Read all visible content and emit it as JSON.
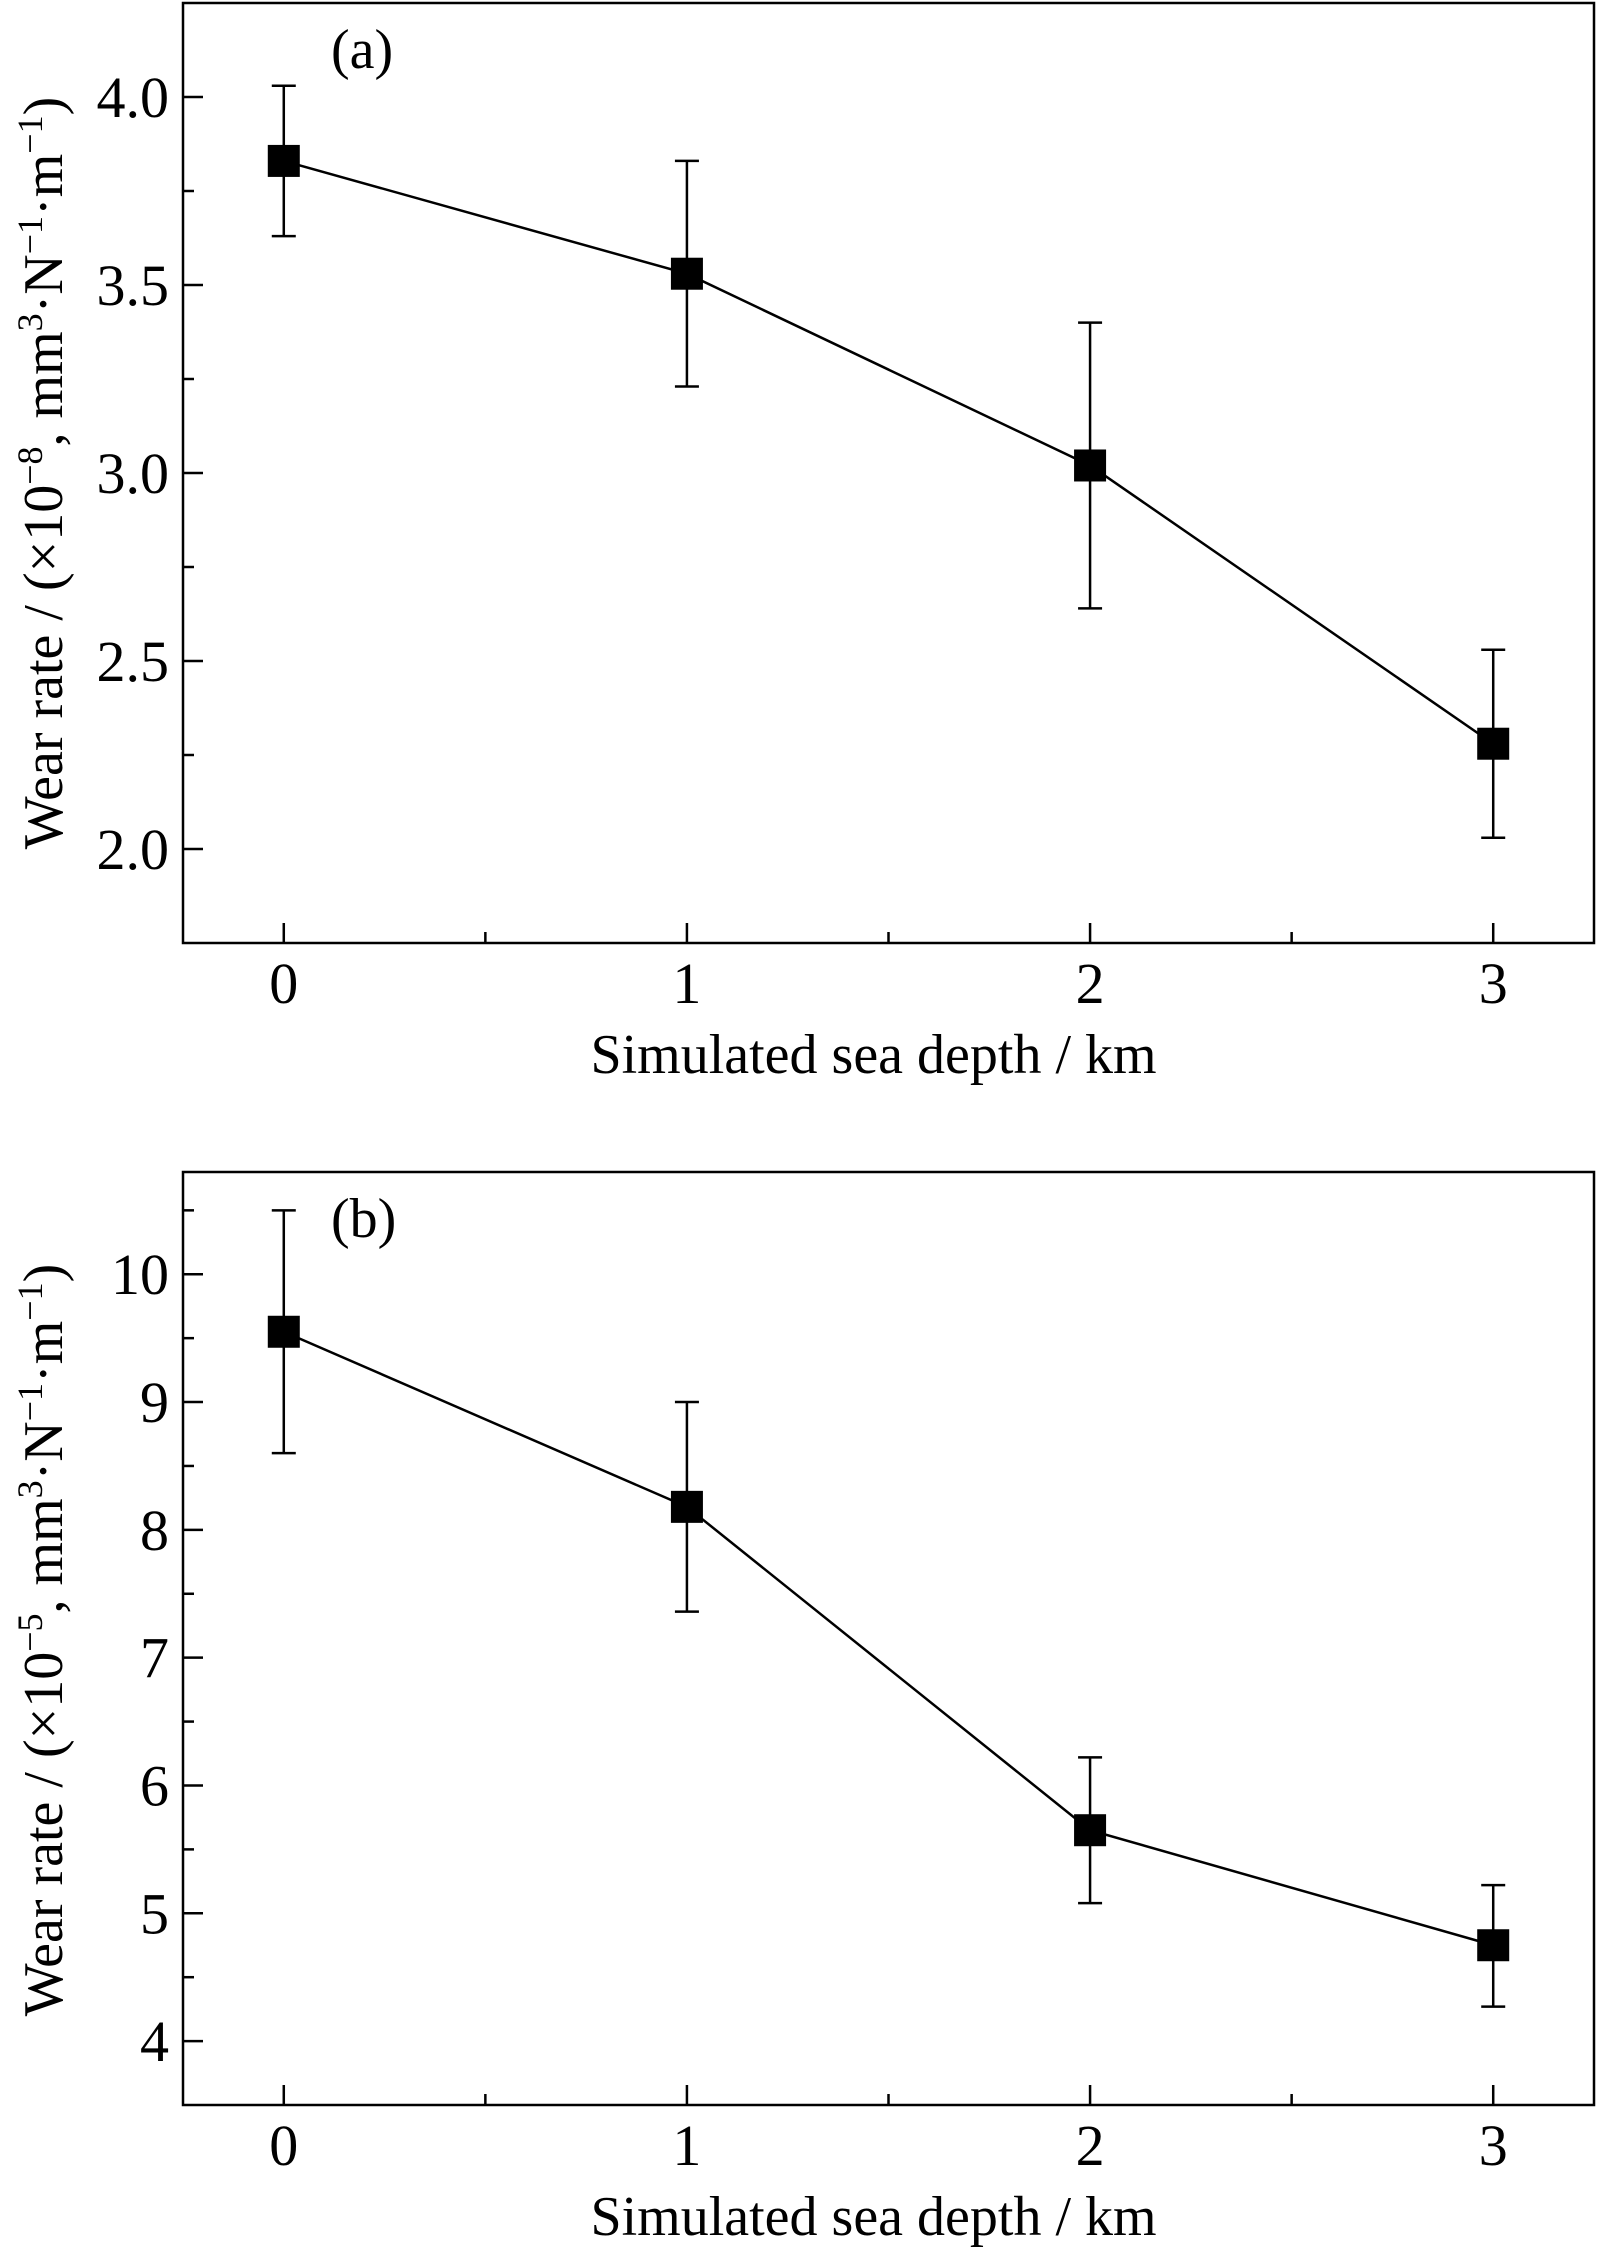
{
  "colors": {
    "background": "#ffffff",
    "ink": "#000000"
  },
  "marker": "filled-square",
  "chart_data": [
    {
      "type": "line",
      "panel_label": "(a)",
      "xlabel": "Simulated sea depth / km",
      "ylabel_main": "Wear rate / (×10",
      "ylabel_exp": "−8",
      "ylabel_mid": ", mm",
      "ylabel_sup1": "3",
      "ylabel_mid2": "·N",
      "ylabel_sup2": "−1",
      "ylabel_mid3": "·m",
      "ylabel_sup3": "−1",
      "ylabel_end": ")",
      "xlim": [
        -0.25,
        3.25
      ],
      "ylim": [
        1.75,
        4.25
      ],
      "xticks": [
        0,
        1,
        2,
        3
      ],
      "xtick_labels": [
        "0",
        "1",
        "2",
        "3"
      ],
      "xminor": [
        0.5,
        1.5,
        2.5
      ],
      "yticks": [
        2.0,
        2.5,
        3.0,
        3.5,
        4.0
      ],
      "ytick_labels": [
        "2.0",
        "2.5",
        "3.0",
        "3.5",
        "4.0"
      ],
      "yminor": [
        2.25,
        2.75,
        3.25,
        3.75
      ],
      "grid": false,
      "series": [
        {
          "x": [
            0,
            1,
            2,
            3
          ],
          "y": [
            3.83,
            3.53,
            3.02,
            2.28
          ],
          "err_low": [
            3.63,
            3.23,
            2.64,
            2.03
          ],
          "err_high": [
            4.03,
            3.83,
            3.4,
            2.53
          ]
        }
      ]
    },
    {
      "type": "line",
      "panel_label": "(b)",
      "xlabel": "Simulated sea depth / km",
      "ylabel_main": "Wear rate / (×10",
      "ylabel_exp": "−5",
      "ylabel_mid": ", mm",
      "ylabel_sup1": "3",
      "ylabel_mid2": "·N",
      "ylabel_sup2": "−1",
      "ylabel_mid3": "·m",
      "ylabel_sup3": "−1",
      "ylabel_end": ")",
      "xlim": [
        -0.25,
        3.25
      ],
      "ylim": [
        3.5,
        10.8
      ],
      "xticks": [
        0,
        1,
        2,
        3
      ],
      "xtick_labels": [
        "0",
        "1",
        "2",
        "3"
      ],
      "xminor": [
        0.5,
        1.5,
        2.5
      ],
      "yticks": [
        4,
        5,
        6,
        7,
        8,
        9,
        10
      ],
      "ytick_labels": [
        "4",
        "5",
        "6",
        "7",
        "8",
        "9",
        "10"
      ],
      "yminor": [
        4.5,
        5.5,
        6.5,
        7.5,
        8.5,
        9.5,
        10.5
      ],
      "grid": false,
      "series": [
        {
          "x": [
            0,
            1,
            2,
            3
          ],
          "y": [
            9.55,
            8.18,
            5.65,
            4.75
          ],
          "err_low": [
            8.6,
            7.36,
            5.08,
            4.27
          ],
          "err_high": [
            10.5,
            9.0,
            6.22,
            5.22
          ]
        }
      ]
    }
  ]
}
